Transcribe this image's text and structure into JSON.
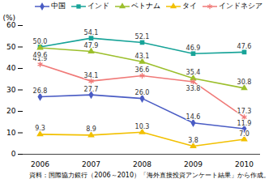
{
  "chart_data": {
    "type": "line",
    "y_label": "(%)",
    "caption": "資料：国際協力銀行（2006～2010）「海外直接投資アンケート結果」から作成。",
    "categories": [
      "2006",
      "2007",
      "2008",
      "2009",
      "2010"
    ],
    "ylim": [
      0,
      60
    ],
    "yticks": [
      0,
      10,
      20,
      30,
      40,
      50,
      60
    ],
    "grid": false,
    "legend": "top",
    "data_labels": true,
    "series": [
      {
        "name": "中国",
        "color": "#4a5cc4",
        "marker": "diamond",
        "values": [
          26.8,
          27.7,
          26.0,
          14.6,
          11.9
        ],
        "value_labels": [
          "26.8",
          "27.7",
          "26.0",
          "14.6",
          "11.9"
        ]
      },
      {
        "name": "インド",
        "color": "#17a398",
        "marker": "square",
        "values": [
          50.0,
          54.1,
          52.1,
          46.9,
          47.6
        ],
        "value_labels": [
          "50.0",
          "54.1",
          "52.1",
          "46.9",
          "47.6"
        ]
      },
      {
        "name": "ベトナム",
        "color": "#9cbf2c",
        "marker": "triangle",
        "values": [
          49.6,
          47.9,
          43.1,
          35.4,
          30.8
        ],
        "value_labels": [
          "49.6",
          "47.9",
          "43.1",
          "35.4",
          "30.8"
        ]
      },
      {
        "name": "タイ",
        "color": "#f2c000",
        "marker": "triangle",
        "values": [
          9.3,
          8.9,
          10.3,
          3.8,
          7.0
        ],
        "value_labels": [
          "9.3",
          "8.9",
          "10.3",
          "3.8",
          "7.0"
        ]
      },
      {
        "name": "インドネシア",
        "color": "#f07a78",
        "marker": "asterisk",
        "values": [
          41.9,
          34.1,
          36.6,
          33.8,
          17.3
        ],
        "value_labels": [
          "41.9",
          "34.1",
          "36.6",
          "33.8",
          "17.3"
        ]
      }
    ]
  }
}
